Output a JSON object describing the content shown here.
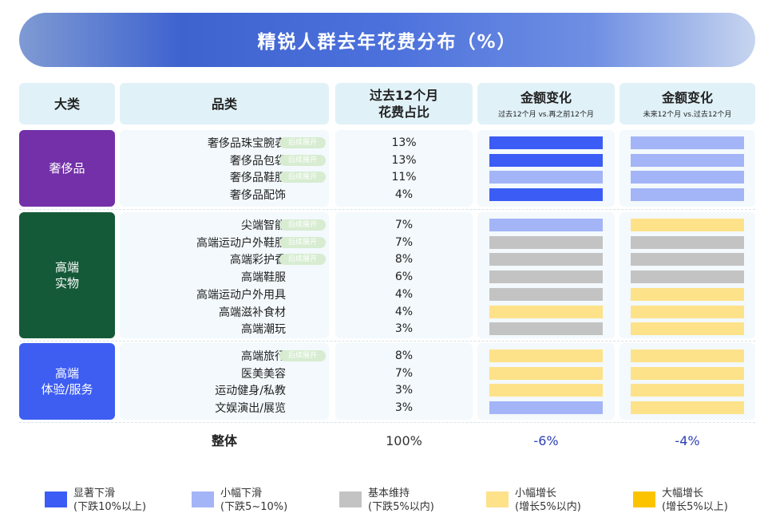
{
  "title": "精锐人群去年花费分布（%）",
  "headers": {
    "category": "大类",
    "item": "品类",
    "share_line1": "过去12个月",
    "share_line2": "花费占比",
    "change_past": "金额变化",
    "change_past_sub": "过去12个月 vs.再之前12个月",
    "change_future": "金额变化",
    "change_future_sub": "未来12个月 vs.过去12个月"
  },
  "tag_label": "后续展开",
  "groups": [
    {
      "name": "奢侈品",
      "color": "#7330a8"
    },
    {
      "name": "高端\n实物",
      "color": "#155a38"
    },
    {
      "name": "高端\n体验/服务",
      "color": "#3e5ef2"
    }
  ],
  "colors": {
    "significant_decline": "#3b5cf5",
    "slight_decline": "#a3b4f7",
    "stable": "#c3c3c3",
    "slight_increase": "#fde28a",
    "significant_increase": "#fcc400"
  },
  "chart_data": {
    "type": "table",
    "rows": [
      {
        "group": 0,
        "name": "奢侈品珠宝腕表",
        "tag": true,
        "share": "13%",
        "past": "significant_decline",
        "future": "slight_decline"
      },
      {
        "group": 0,
        "name": "奢侈品包袋",
        "tag": true,
        "share": "13%",
        "past": "significant_decline",
        "future": "slight_decline"
      },
      {
        "group": 0,
        "name": "奢侈品鞋服",
        "tag": true,
        "share": "11%",
        "past": "slight_decline",
        "future": "slight_decline"
      },
      {
        "group": 0,
        "name": "奢侈品配饰",
        "tag": false,
        "share": "4%",
        "past": "significant_decline",
        "future": "slight_decline"
      },
      {
        "group": 1,
        "name": "尖端智能",
        "tag": true,
        "share": "7%",
        "past": "slight_decline",
        "future": "slight_increase"
      },
      {
        "group": 1,
        "name": "高端运动户外鞋服",
        "tag": true,
        "share": "7%",
        "past": "stable",
        "future": "stable"
      },
      {
        "group": 1,
        "name": "高端彩护香",
        "tag": true,
        "share": "8%",
        "past": "stable",
        "future": "stable"
      },
      {
        "group": 1,
        "name": "高端鞋服",
        "tag": false,
        "share": "6%",
        "past": "stable",
        "future": "stable"
      },
      {
        "group": 1,
        "name": "高端运动户外用具",
        "tag": false,
        "share": "4%",
        "past": "stable",
        "future": "slight_increase"
      },
      {
        "group": 1,
        "name": "高端滋补食材",
        "tag": false,
        "share": "4%",
        "past": "slight_increase",
        "future": "slight_increase"
      },
      {
        "group": 1,
        "name": "高端潮玩",
        "tag": false,
        "share": "3%",
        "past": "stable",
        "future": "slight_increase"
      },
      {
        "group": 2,
        "name": "高端旅行",
        "tag": true,
        "share": "8%",
        "past": "slight_increase",
        "future": "slight_increase"
      },
      {
        "group": 2,
        "name": "医美美容",
        "tag": false,
        "share": "7%",
        "past": "slight_increase",
        "future": "slight_increase"
      },
      {
        "group": 2,
        "name": "运动健身/私教",
        "tag": false,
        "share": "3%",
        "past": "slight_increase",
        "future": "slight_increase"
      },
      {
        "group": 2,
        "name": "文娱演出/展览",
        "tag": false,
        "share": "3%",
        "past": "slight_decline",
        "future": "slight_increase"
      }
    ],
    "total": {
      "label": "整体",
      "share": "100%",
      "past": "-6%",
      "future": "-4%"
    }
  },
  "legend": [
    {
      "key": "significant_decline",
      "label": "显著下滑\n(下跌10%以上)"
    },
    {
      "key": "slight_decline",
      "label": "小幅下滑\n(下跌5~10%)"
    },
    {
      "key": "stable",
      "label": "基本维持\n(下跌5%以内)"
    },
    {
      "key": "slight_increase",
      "label": "小幅增长\n(增长5%以内)"
    },
    {
      "key": "significant_increase",
      "label": "大幅增长\n(增长5%以上)"
    }
  ]
}
